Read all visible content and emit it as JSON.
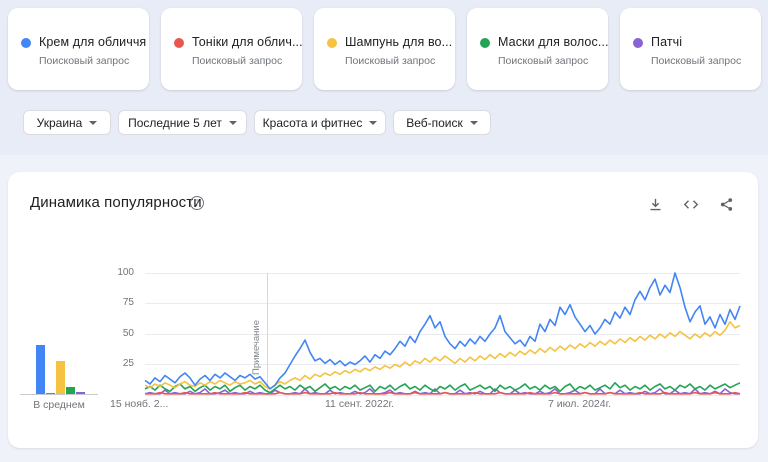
{
  "terms": [
    {
      "label": "Крем для обличчя",
      "type_label": "Поисковый запрос",
      "color": "#4285f4"
    },
    {
      "label": "Тоніки для облич...",
      "type_label": "Поисковый запрос",
      "color": "#e8564e"
    },
    {
      "label": "Шампунь для во...",
      "type_label": "Поисковый запрос",
      "color": "#f5c242"
    },
    {
      "label": "Маски для волос...",
      "type_label": "Поисковый запрос",
      "color": "#23a454"
    },
    {
      "label": "Патчі",
      "type_label": "Поисковый запрос",
      "color": "#8a63d2"
    }
  ],
  "filters": [
    {
      "label": "Украина"
    },
    {
      "label": "Последние 5 лет"
    },
    {
      "label": "Красота и фитнес"
    },
    {
      "label": "Веб-поиск"
    }
  ],
  "section": {
    "title": "Динамика популярности",
    "help_glyph": "?"
  },
  "chart_data": {
    "type": "line",
    "title": "Динамика популярности",
    "ylim": [
      0,
      100
    ],
    "grid": true,
    "yticks": [
      "100",
      "75",
      "50",
      "25"
    ],
    "xticks": [
      {
        "label": "15 нояб. 2...",
        "pos": 0.0
      },
      {
        "label": "11 сент. 2022г.",
        "pos": 0.35
      },
      {
        "label": "7 июл. 2024г.",
        "pos": 0.72
      }
    ],
    "note_marker": {
      "label": "Примечание",
      "pos": 0.205
    },
    "series": [
      {
        "name": "Крем для обличчя",
        "color": "#4285f4",
        "values": [
          12,
          9,
          14,
          11,
          16,
          13,
          10,
          15,
          18,
          14,
          8,
          13,
          16,
          12,
          17,
          14,
          18,
          15,
          12,
          16,
          14,
          17,
          13,
          15,
          10,
          5,
          8,
          14,
          18,
          25,
          32,
          38,
          45,
          35,
          28,
          30,
          26,
          29,
          25,
          28,
          24,
          27,
          25,
          28,
          32,
          27,
          33,
          30,
          36,
          33,
          38,
          44,
          40,
          48,
          43,
          52,
          58,
          65,
          55,
          60,
          48,
          42,
          38,
          44,
          40,
          46,
          42,
          48,
          44,
          50,
          55,
          65,
          52,
          47,
          42,
          45,
          40,
          48,
          44,
          58,
          52,
          62,
          57,
          72,
          66,
          74,
          64,
          58,
          52,
          57,
          50,
          55,
          62,
          58,
          68,
          63,
          72,
          66,
          78,
          85,
          78,
          88,
          95,
          82,
          90,
          84,
          100,
          88,
          72,
          60,
          68,
          73,
          58,
          64,
          55,
          66,
          58,
          70,
          62,
          73
        ]
      },
      {
        "name": "Тоніки для облич...",
        "color": "#e8564e",
        "values": [
          1,
          1,
          1,
          2,
          1,
          1,
          1,
          1,
          2,
          1,
          1,
          1,
          1,
          1,
          2,
          1,
          1,
          1,
          1,
          1,
          2,
          1,
          1,
          1,
          1,
          1,
          1,
          2,
          1,
          1,
          1,
          1,
          2,
          1,
          1,
          1,
          1,
          1,
          2,
          1,
          1,
          1,
          1,
          2,
          1,
          1,
          1,
          1,
          1,
          2,
          1,
          1,
          1,
          1,
          2,
          1,
          1,
          1,
          1,
          1,
          2,
          1,
          1,
          1,
          1,
          1,
          2,
          1,
          1,
          1,
          1,
          2,
          1,
          1,
          1,
          1,
          1,
          2,
          1,
          1,
          1,
          1,
          2,
          1,
          1,
          1,
          1,
          1,
          2,
          1,
          1,
          1,
          1,
          2,
          1,
          1,
          1,
          1,
          1,
          2,
          1,
          1,
          1,
          1,
          2,
          1,
          1,
          1,
          1,
          1,
          2,
          1,
          1,
          1,
          2,
          1,
          1,
          1,
          2,
          1
        ]
      },
      {
        "name": "Шампунь для во...",
        "color": "#f5c242",
        "values": [
          8,
          6,
          9,
          7,
          10,
          8,
          6,
          9,
          11,
          8,
          7,
          10,
          8,
          11,
          9,
          12,
          10,
          8,
          11,
          9,
          10,
          12,
          9,
          11,
          7,
          5,
          8,
          11,
          9,
          12,
          14,
          12,
          16,
          13,
          17,
          15,
          18,
          16,
          19,
          17,
          20,
          18,
          21,
          19,
          22,
          20,
          23,
          21,
          24,
          22,
          25,
          23,
          27,
          24,
          28,
          26,
          30,
          27,
          31,
          28,
          32,
          29,
          26,
          30,
          27,
          31,
          28,
          32,
          29,
          33,
          30,
          34,
          31,
          35,
          32,
          36,
          33,
          37,
          34,
          38,
          35,
          39,
          36,
          40,
          37,
          41,
          38,
          42,
          39,
          43,
          40,
          44,
          41,
          45,
          42,
          46,
          43,
          47,
          44,
          48,
          45,
          49,
          46,
          50,
          47,
          51,
          48,
          52,
          49,
          46,
          50,
          47,
          51,
          48,
          52,
          49,
          53,
          60,
          55,
          57
        ]
      },
      {
        "name": "Маски для волос...",
        "color": "#23a454",
        "values": [
          5,
          7,
          4,
          8,
          5,
          3,
          7,
          9,
          5,
          7,
          3,
          6,
          8,
          4,
          7,
          5,
          8,
          3,
          6,
          8,
          4,
          7,
          5,
          8,
          4,
          2,
          5,
          8,
          5,
          7,
          4,
          8,
          5,
          7,
          3,
          6,
          9,
          5,
          7,
          4,
          7,
          5,
          8,
          4,
          6,
          8,
          3,
          7,
          5,
          8,
          4,
          7,
          9,
          5,
          7,
          4,
          8,
          5,
          3,
          7,
          5,
          8,
          4,
          7,
          9,
          4,
          6,
          8,
          5,
          7,
          3,
          8,
          5,
          7,
          4,
          6,
          9,
          5,
          7,
          4,
          8,
          5,
          7,
          3,
          7,
          9,
          4,
          7,
          5,
          8,
          4,
          6,
          8,
          5,
          10,
          6,
          8,
          4,
          7,
          5,
          8,
          4,
          7,
          9,
          5,
          7,
          4,
          8,
          6,
          9,
          5,
          7,
          4,
          8,
          5,
          7,
          9,
          6,
          8,
          10
        ]
      },
      {
        "name": "Патчі",
        "color": "#8a63d2",
        "values": [
          1,
          2,
          1,
          1,
          4,
          1,
          2,
          1,
          1,
          3,
          1,
          2,
          5,
          1,
          1,
          2,
          4,
          1,
          2,
          1,
          1,
          3,
          1,
          2,
          1,
          1,
          4,
          2,
          1,
          1,
          2,
          1,
          5,
          1,
          2,
          1,
          1,
          4,
          1,
          2,
          1,
          1,
          3,
          1,
          2,
          5,
          1,
          1,
          2,
          4,
          1,
          2,
          1,
          1,
          3,
          1,
          2,
          1,
          5,
          1,
          2,
          1,
          1,
          4,
          1,
          2,
          1,
          3,
          1,
          1,
          5,
          2,
          1,
          1,
          4,
          1,
          2,
          1,
          1,
          3,
          1,
          2,
          5,
          1,
          1,
          2,
          4,
          1,
          2,
          1,
          1,
          5,
          1,
          2,
          1,
          4,
          1,
          2,
          1,
          1,
          3,
          1,
          2,
          5,
          1,
          1,
          4,
          1,
          2,
          1,
          5,
          1,
          2,
          1,
          3,
          1,
          5,
          2,
          1,
          1
        ]
      }
    ],
    "averages": {
      "label": "В среднем",
      "values": [
        {
          "name": "Крем для обличчя",
          "value": 40
        },
        {
          "name": "Тоніки для облич...",
          "value": 1
        },
        {
          "name": "Шампунь для во...",
          "value": 27
        },
        {
          "name": "Маски для волос...",
          "value": 6
        },
        {
          "name": "Патчі",
          "value": 2
        }
      ]
    }
  },
  "toolbar_icons": [
    {
      "name": "download-icon"
    },
    {
      "name": "embed-icon"
    },
    {
      "name": "share-icon"
    }
  ]
}
